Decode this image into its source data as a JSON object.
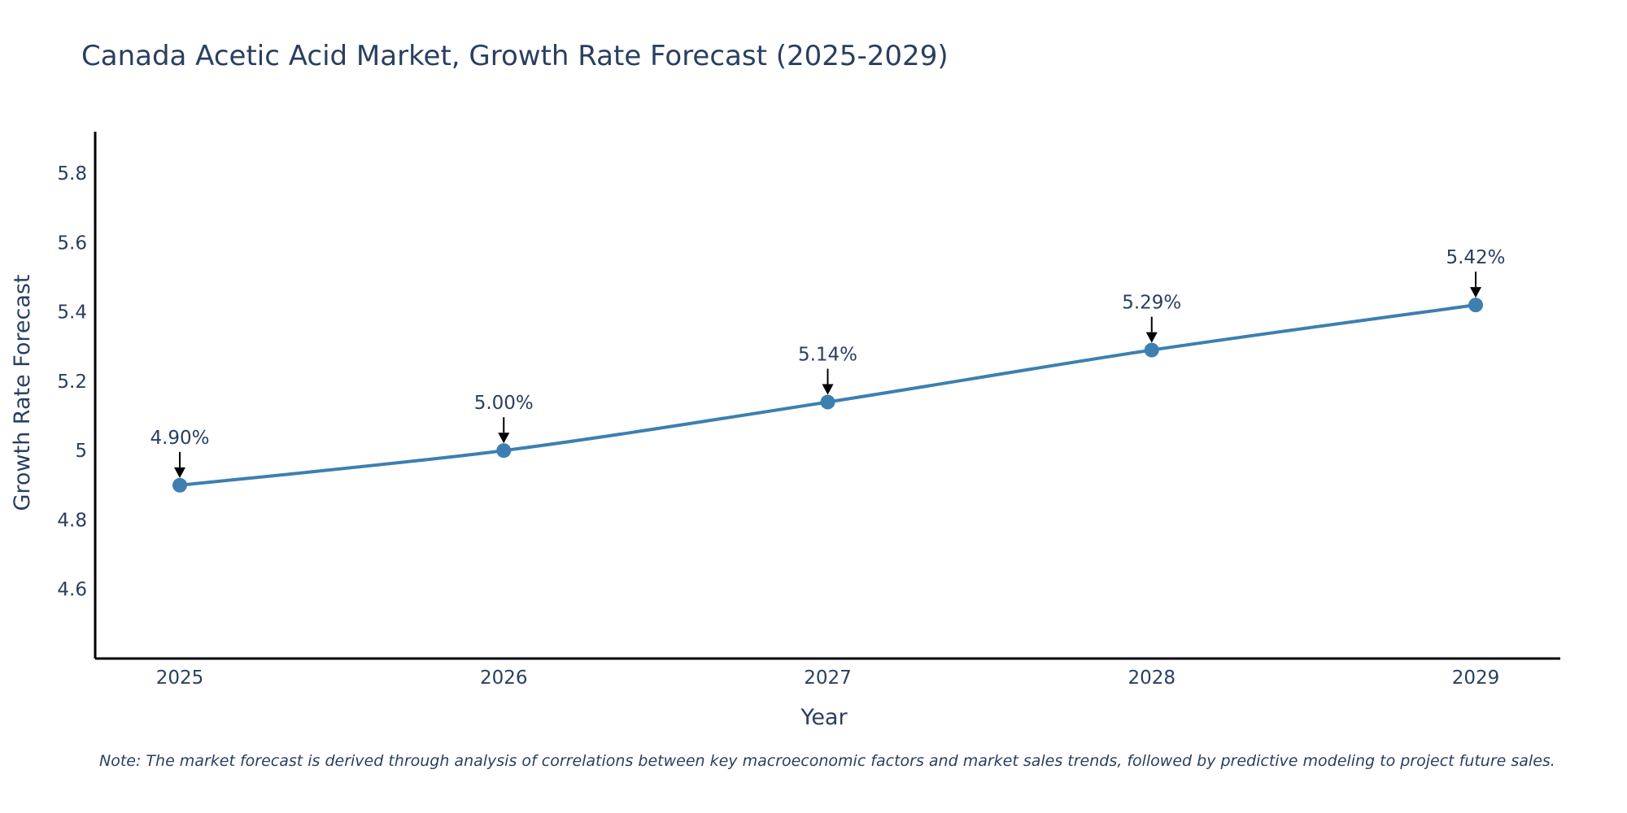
{
  "chart_data": {
    "type": "line",
    "title": "Canada Acetic Acid Market, Growth Rate Forecast (2025-2029)",
    "xlabel": "Year",
    "ylabel": "Growth Rate Forecast",
    "categories": [
      "2025",
      "2026",
      "2027",
      "2028",
      "2029"
    ],
    "series": [
      {
        "name": "Growth Rate Forecast",
        "values": [
          4.9,
          5.0,
          5.14,
          5.29,
          5.42
        ],
        "labels": [
          "4.90%",
          "5.00%",
          "5.14%",
          "5.29%",
          "5.42%"
        ]
      }
    ],
    "ylim": [
      4.4,
      5.92
    ],
    "yticks": [
      4.6,
      4.8,
      5,
      5.2,
      5.4,
      5.6,
      5.8
    ],
    "ytick_labels": [
      "4.6",
      "4.8",
      "5",
      "5.2",
      "5.4",
      "5.6",
      "5.8"
    ],
    "grid": false,
    "note": "Note: The market forecast is derived through analysis of correlations between key macroeconomic factors and market sales trends, followed by predictive modeling to project future sales.",
    "colors": {
      "line": "#3d7fb0",
      "marker": "#3d7fb0",
      "axis": "#000000",
      "text": "#2a3f5f"
    }
  }
}
